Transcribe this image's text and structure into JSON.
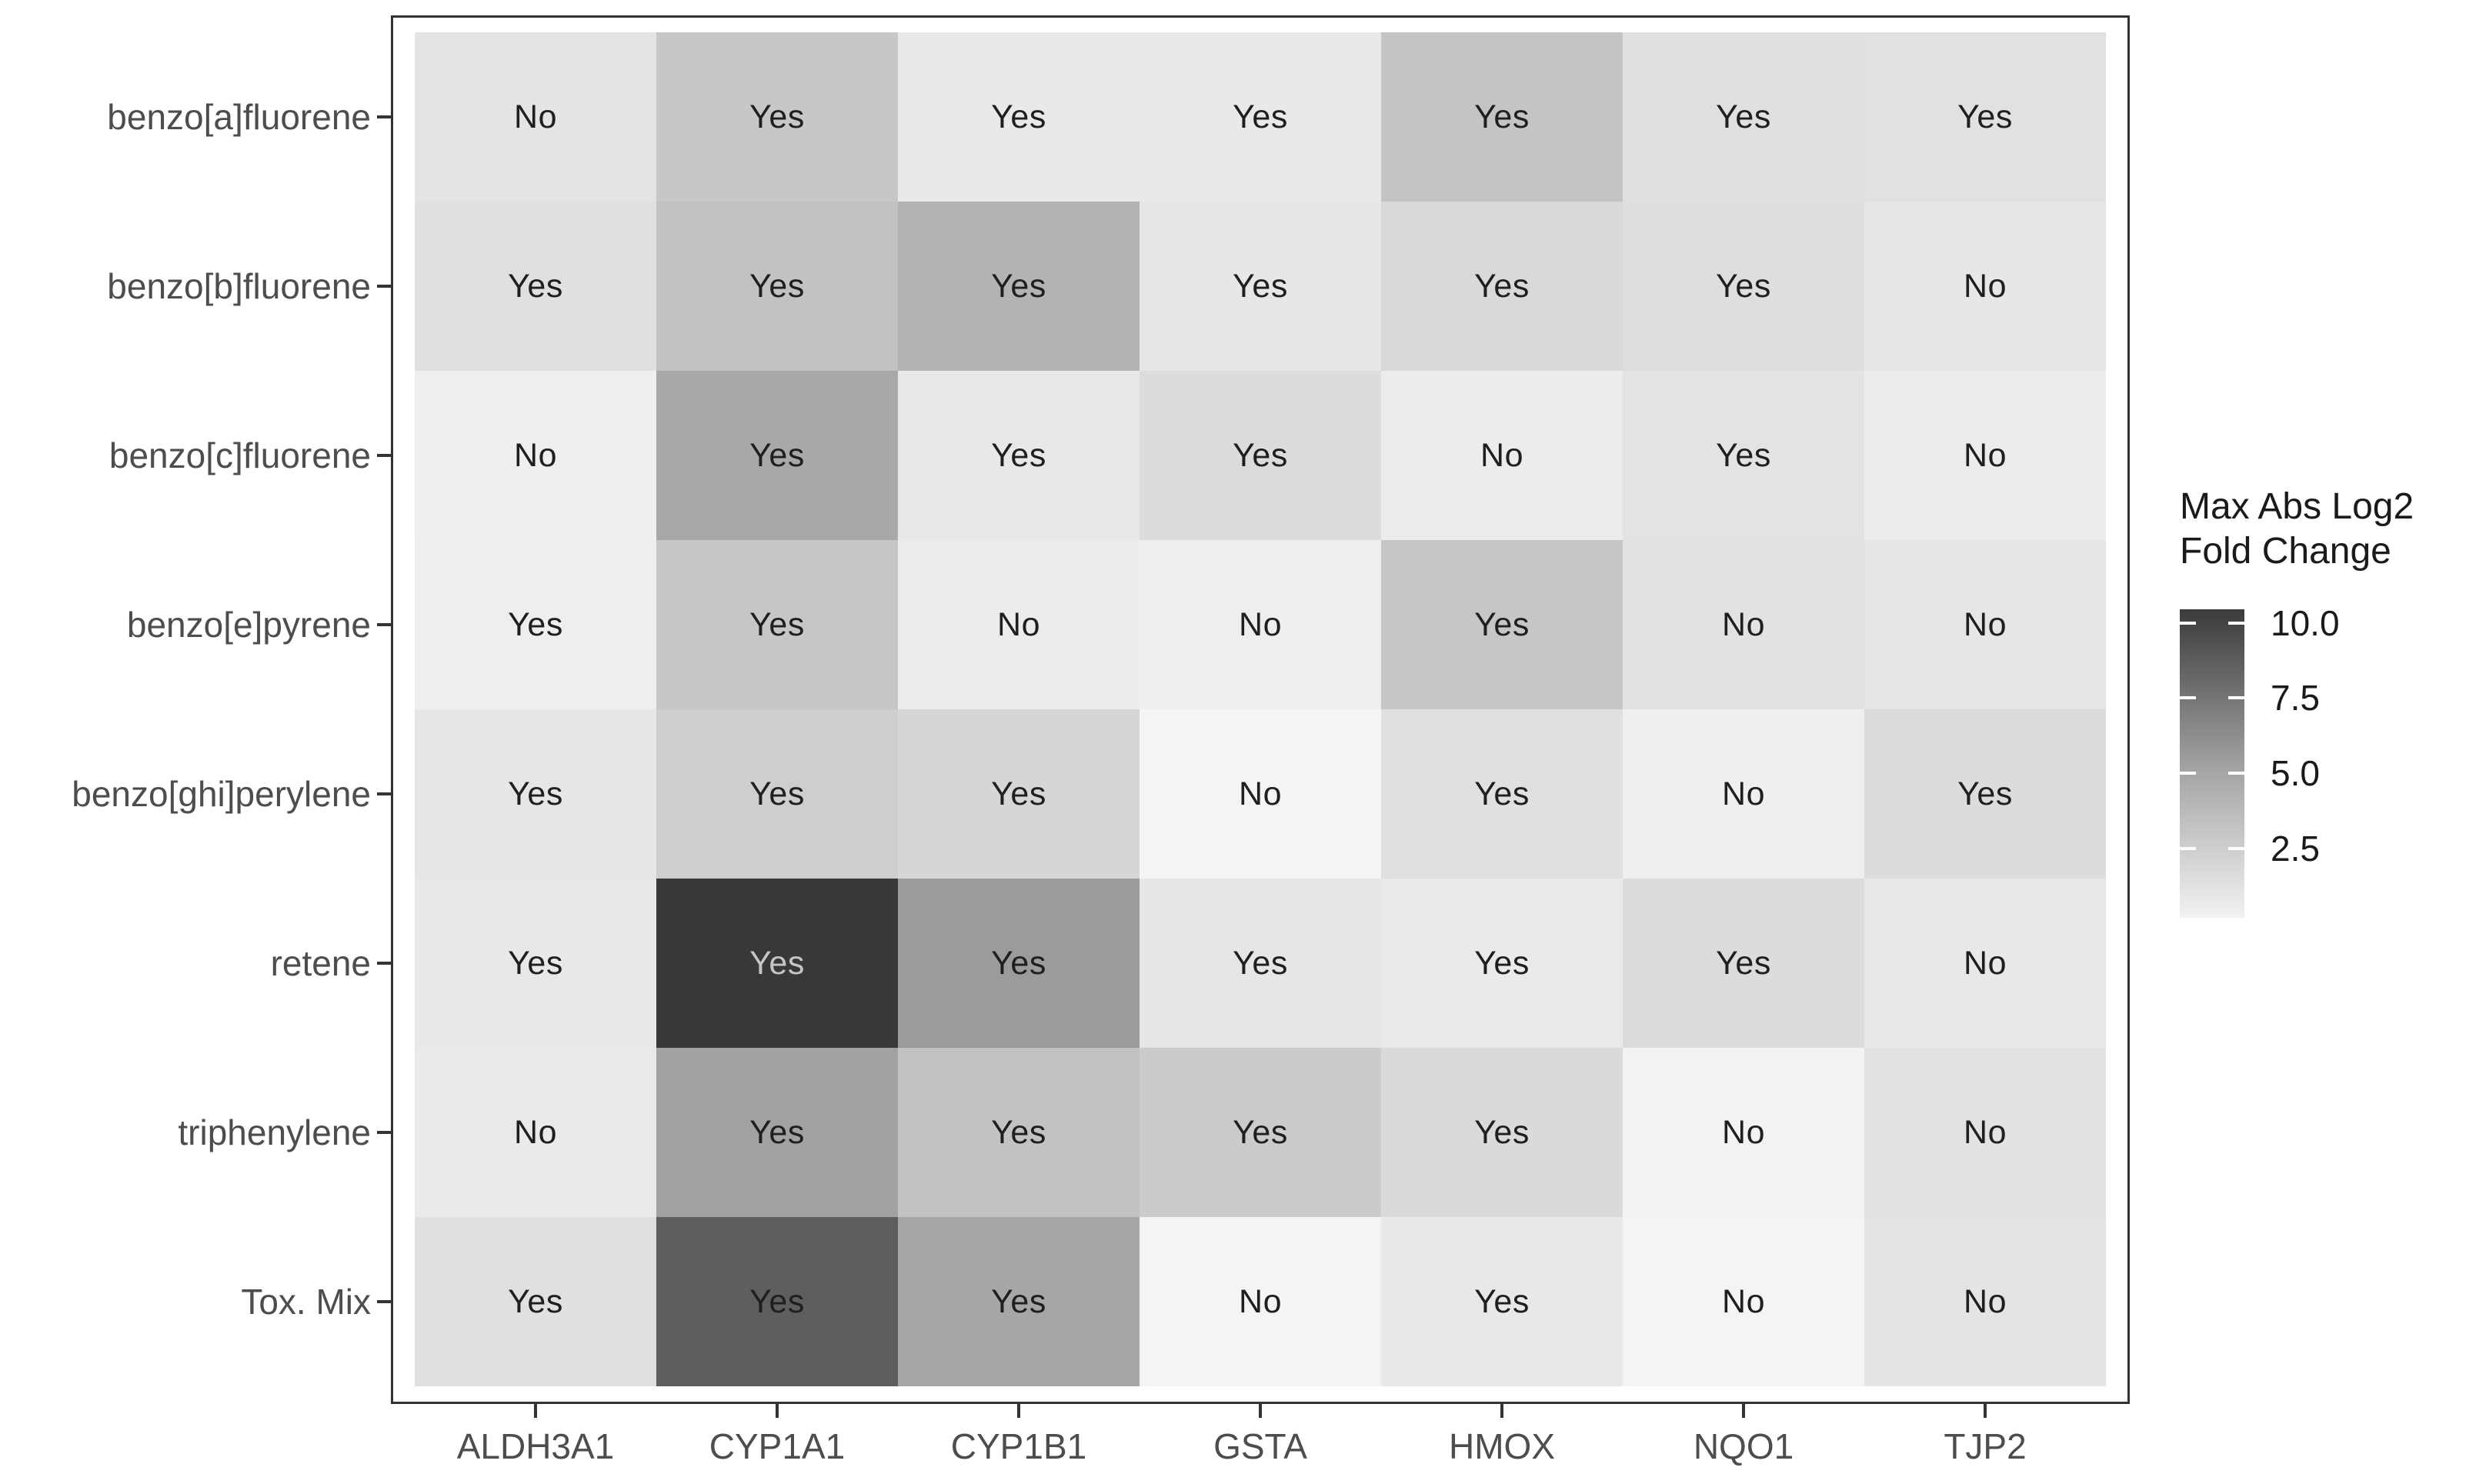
{
  "figure": {
    "background": "#ffffff",
    "axis_text_color": "#4d4d4d",
    "cell_text_color": "#1f1f1f",
    "panel_border_color": "#333333"
  },
  "legend": {
    "title": "Max Abs Log2\nFold Change",
    "tick_labels": [
      "10.0",
      "7.5",
      "5.0",
      "2.5"
    ],
    "tick_values": [
      10.0,
      7.5,
      5.0,
      2.5
    ],
    "domain_min": 0.2,
    "domain_max": 10.45,
    "gradient_top": "#3b3b3b",
    "gradient_mid": "#a6a6a6",
    "gradient_bottom": "#f2f2f2"
  },
  "chart_data": {
    "type": "heatmap",
    "title": "",
    "xlabel": "",
    "ylabel": "",
    "legend_title": "Max Abs Log2 Fold Change",
    "legend_position": "right",
    "colorbar_ticks": [
      2.5,
      5.0,
      7.5,
      10.0
    ],
    "color_scale": {
      "low": "#ffffff",
      "high": "#333333",
      "note": "white = low fold change, dark = high fold change"
    },
    "x_categories": [
      "ALDH3A1",
      "CYP1A1",
      "CYP1B1",
      "GSTA",
      "HMOX",
      "NQO1",
      "TJP2"
    ],
    "y_categories": [
      "benzo[a]fluorene",
      "benzo[b]fluorene",
      "benzo[c]fluorene",
      "benzo[e]pyrene",
      "benzo[ghi]perylene",
      "retene",
      "triphenylene",
      "Tox. Mix"
    ],
    "cell_labels": [
      [
        "No",
        "Yes",
        "Yes",
        "Yes",
        "Yes",
        "Yes",
        "Yes"
      ],
      [
        "Yes",
        "Yes",
        "Yes",
        "Yes",
        "Yes",
        "Yes",
        "No"
      ],
      [
        "No",
        "Yes",
        "Yes",
        "Yes",
        "No",
        "Yes",
        "No"
      ],
      [
        "Yes",
        "Yes",
        "No",
        "No",
        "Yes",
        "No",
        "No"
      ],
      [
        "Yes",
        "Yes",
        "Yes",
        "No",
        "Yes",
        "No",
        "Yes"
      ],
      [
        "Yes",
        "Yes",
        "Yes",
        "Yes",
        "Yes",
        "Yes",
        "No"
      ],
      [
        "No",
        "Yes",
        "Yes",
        "Yes",
        "Yes",
        "No",
        "No"
      ],
      [
        "Yes",
        "Yes",
        "Yes",
        "No",
        "Yes",
        "No",
        "No"
      ]
    ],
    "cell_values": [
      [
        1.1,
        2.7,
        0.9,
        0.9,
        2.9,
        1.4,
        1.3
      ],
      [
        1.4,
        3.0,
        3.9,
        1.0,
        1.7,
        1.5,
        1.0
      ],
      [
        0.5,
        4.5,
        0.9,
        1.6,
        0.7,
        1.2,
        0.7
      ],
      [
        0.6,
        2.8,
        0.7,
        0.6,
        2.8,
        1.2,
        1.0
      ],
      [
        1.0,
        2.4,
        1.9,
        0.3,
        1.4,
        0.5,
        1.6
      ],
      [
        0.9,
        10.4,
        5.2,
        1.0,
        0.8,
        1.6,
        0.9
      ],
      [
        0.8,
        4.8,
        3.0,
        2.5,
        1.7,
        0.4,
        1.2
      ],
      [
        1.4,
        8.5,
        4.6,
        0.3,
        0.9,
        0.3,
        1.1
      ]
    ],
    "cell_fills": [
      [
        "#e4e4e4",
        "#c7c7c7",
        "#e9e9e9",
        "#e9e9e9",
        "#c4c4c4",
        "#e0e0e0",
        "#e1e1e1"
      ],
      [
        "#e0e0e0",
        "#c2c2c2",
        "#b3b3b3",
        "#e7e7e7",
        "#d9d9d9",
        "#dedede",
        "#e7e7e7"
      ],
      [
        "#efefef",
        "#a8a8a8",
        "#e8e8e8",
        "#dcdcdc",
        "#ececec",
        "#e3e3e3",
        "#ececec"
      ],
      [
        "#eeeeee",
        "#c6c6c6",
        "#ececec",
        "#eeeeee",
        "#c6c6c6",
        "#e2e2e2",
        "#e6e6e6"
      ],
      [
        "#e6e6e6",
        "#cecece",
        "#d6d6d6",
        "#f4f4f4",
        "#e0e0e0",
        "#efefef",
        "#dcdcdc"
      ],
      [
        "#e8e8e8",
        "#383838",
        "#9b9b9b",
        "#e6e6e6",
        "#eaeaea",
        "#dcdcdc",
        "#e8e8e8"
      ],
      [
        "#eaeaea",
        "#a2a2a2",
        "#c2c2c2",
        "#cbcbcb",
        "#dadada",
        "#f2f2f2",
        "#e2e2e2"
      ],
      [
        "#e0e0e0",
        "#5e5e5e",
        "#a6a6a6",
        "#f4f4f4",
        "#e8e8e8",
        "#f4f4f4",
        "#e4e4e4"
      ]
    ],
    "light_text_cell": {
      "row": 5,
      "col": 1,
      "color": "#c6c6c6"
    }
  }
}
